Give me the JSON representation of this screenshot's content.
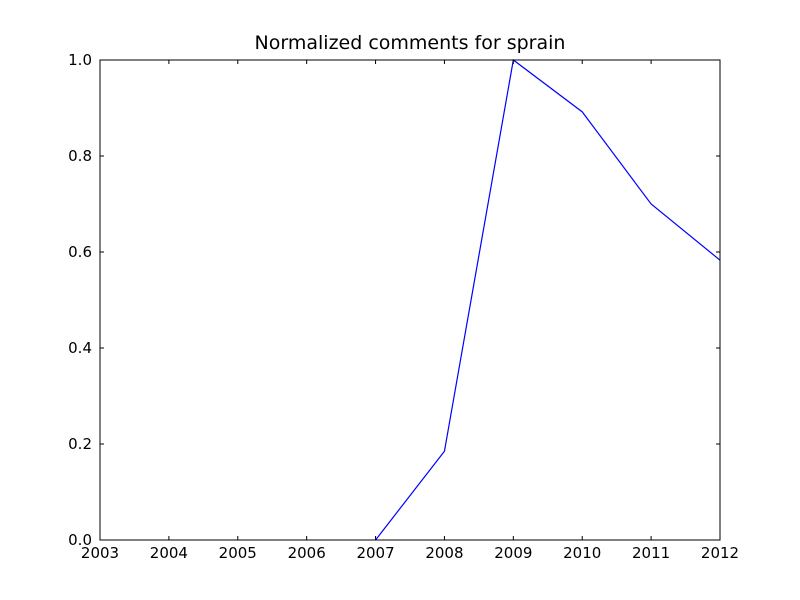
{
  "chart_data": {
    "type": "line",
    "title": "Normalized comments for sprain",
    "xlabel": "",
    "ylabel": "",
    "xlim": [
      2003,
      2012
    ],
    "ylim": [
      0,
      1.0
    ],
    "x_ticks": [
      "2003",
      "2004",
      "2005",
      "2006",
      "2007",
      "2008",
      "2009",
      "2010",
      "2011",
      "2012"
    ],
    "y_ticks": [
      "0.0",
      "0.2",
      "0.4",
      "0.6",
      "0.8",
      "1.0"
    ],
    "grid": false,
    "series": [
      {
        "color": "#0000ff",
        "x": [
          2007,
          2008,
          2009,
          2010,
          2011,
          2012
        ],
        "y": [
          0.0,
          0.185,
          1.0,
          0.892,
          0.7,
          0.583
        ]
      }
    ]
  }
}
